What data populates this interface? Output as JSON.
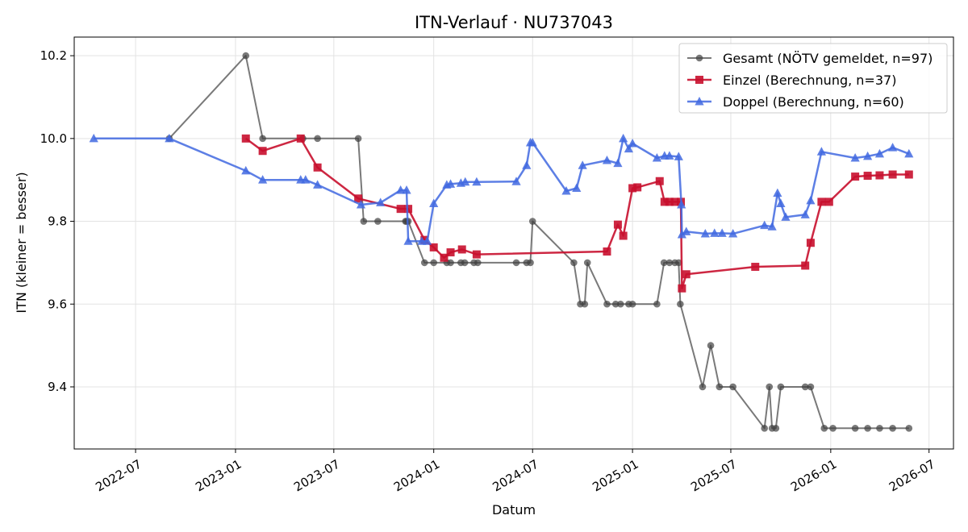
{
  "chart_data": {
    "type": "line",
    "title": "ITN-Verlauf · NU737043",
    "xlabel": "Datum",
    "ylabel": "ITN  (kleiner = besser)",
    "xlim": [
      "2022-03-10",
      "2026-08-15"
    ],
    "ylim": [
      9.25,
      10.245
    ],
    "x_ticks": [
      "2022-07",
      "2023-01",
      "2023-07",
      "2024-01",
      "2024-07",
      "2025-01",
      "2025-07",
      "2026-01",
      "2026-07"
    ],
    "y_ticks": [
      9.4,
      9.6,
      9.8,
      10.0,
      10.2
    ],
    "grid": true,
    "legend_position": "top-right",
    "series": [
      {
        "name": "Gesamt (NÖTV gemeldet, n=97)",
        "color": "#404040",
        "marker": "circle",
        "points": [
          [
            "2022-09-01",
            10.0
          ],
          [
            "2023-01-20",
            10.2
          ],
          [
            "2023-02-20",
            10.0
          ],
          [
            "2023-05-05",
            10.0
          ],
          [
            "2023-06-01",
            10.0
          ],
          [
            "2023-08-15",
            10.0
          ],
          [
            "2023-08-25",
            9.8
          ],
          [
            "2023-09-20",
            9.8
          ],
          [
            "2023-11-10",
            9.8
          ],
          [
            "2023-11-12",
            9.8
          ],
          [
            "2023-11-15",
            9.8
          ],
          [
            "2023-12-15",
            9.7
          ],
          [
            "2024-01-01",
            9.7
          ],
          [
            "2024-01-25",
            9.7
          ],
          [
            "2024-02-01",
            9.7
          ],
          [
            "2024-02-20",
            9.7
          ],
          [
            "2024-02-27",
            9.7
          ],
          [
            "2024-03-15",
            9.7
          ],
          [
            "2024-03-22",
            9.7
          ],
          [
            "2024-06-01",
            9.7
          ],
          [
            "2024-06-20",
            9.7
          ],
          [
            "2024-06-27",
            9.7
          ],
          [
            "2024-07-01",
            9.8
          ],
          [
            "2024-09-15",
            9.7
          ],
          [
            "2024-09-27",
            9.6
          ],
          [
            "2024-10-05",
            9.6
          ],
          [
            "2024-10-10",
            9.7
          ],
          [
            "2024-11-15",
            9.6
          ],
          [
            "2024-12-01",
            9.6
          ],
          [
            "2024-12-10",
            9.6
          ],
          [
            "2024-12-25",
            9.6
          ],
          [
            "2025-01-01",
            9.6
          ],
          [
            "2025-02-15",
            9.6
          ],
          [
            "2025-02-28",
            9.7
          ],
          [
            "2025-03-10",
            9.7
          ],
          [
            "2025-03-20",
            9.7
          ],
          [
            "2025-03-27",
            9.7
          ],
          [
            "2025-03-30",
            9.6
          ],
          [
            "2025-05-10",
            9.4
          ],
          [
            "2025-05-25",
            9.5
          ],
          [
            "2025-06-10",
            9.4
          ],
          [
            "2025-07-05",
            9.4
          ],
          [
            "2025-09-01",
            9.3
          ],
          [
            "2025-09-10",
            9.4
          ],
          [
            "2025-09-15",
            9.3
          ],
          [
            "2025-09-22",
            9.3
          ],
          [
            "2025-10-01",
            9.4
          ],
          [
            "2025-11-15",
            9.4
          ],
          [
            "2025-11-25",
            9.4
          ],
          [
            "2025-12-20",
            9.3
          ],
          [
            "2026-01-05",
            9.3
          ],
          [
            "2026-02-15",
            9.3
          ],
          [
            "2026-03-10",
            9.3
          ],
          [
            "2026-04-01",
            9.3
          ],
          [
            "2026-04-25",
            9.3
          ],
          [
            "2026-05-25",
            9.3
          ]
        ]
      },
      {
        "name": "Einzel (Berechnung, n=37)",
        "color": "#c8102e",
        "marker": "square",
        "points": [
          [
            "2023-01-20",
            10.0
          ],
          [
            "2023-02-20",
            9.97
          ],
          [
            "2023-05-01",
            10.0
          ],
          [
            "2023-06-01",
            9.93
          ],
          [
            "2023-08-15",
            9.855
          ],
          [
            "2023-11-01",
            9.83
          ],
          [
            "2023-11-15",
            9.83
          ],
          [
            "2023-12-15",
            9.755
          ],
          [
            "2024-01-01",
            9.737
          ],
          [
            "2024-01-20",
            9.712
          ],
          [
            "2024-02-01",
            9.725
          ],
          [
            "2024-02-22",
            9.732
          ],
          [
            "2024-03-20",
            9.72
          ],
          [
            "2024-11-15",
            9.727
          ],
          [
            "2024-12-05",
            9.792
          ],
          [
            "2024-12-15",
            9.765
          ],
          [
            "2025-01-01",
            9.88
          ],
          [
            "2025-01-10",
            9.882
          ],
          [
            "2025-02-20",
            9.897
          ],
          [
            "2025-03-01",
            9.847
          ],
          [
            "2025-03-10",
            9.847
          ],
          [
            "2025-03-20",
            9.847
          ],
          [
            "2025-03-31",
            9.847
          ],
          [
            "2025-04-02",
            9.638
          ],
          [
            "2025-04-10",
            9.672
          ],
          [
            "2025-08-15",
            9.69
          ],
          [
            "2025-11-15",
            9.693
          ],
          [
            "2025-11-25",
            9.748
          ],
          [
            "2025-12-15",
            9.847
          ],
          [
            "2025-12-29",
            9.847
          ],
          [
            "2026-02-15",
            9.908
          ],
          [
            "2026-03-10",
            9.91
          ],
          [
            "2026-04-01",
            9.911
          ],
          [
            "2026-04-25",
            9.913
          ],
          [
            "2026-05-25",
            9.913
          ]
        ]
      },
      {
        "name": "Doppel (Berechnung, n=60)",
        "color": "#4169e1",
        "marker": "triangle",
        "points": [
          [
            "2022-04-15",
            10.0
          ],
          [
            "2022-09-01",
            10.0
          ],
          [
            "2023-01-20",
            9.922
          ],
          [
            "2023-02-20",
            9.9
          ],
          [
            "2023-05-01",
            9.9
          ],
          [
            "2023-05-10",
            9.9
          ],
          [
            "2023-06-01",
            9.888
          ],
          [
            "2023-08-20",
            9.84
          ],
          [
            "2023-09-25",
            9.845
          ],
          [
            "2023-11-01",
            9.875
          ],
          [
            "2023-11-12",
            9.875
          ],
          [
            "2023-11-15",
            9.752
          ],
          [
            "2023-12-10",
            9.752
          ],
          [
            "2023-12-20",
            9.752
          ],
          [
            "2024-01-01",
            9.843
          ],
          [
            "2024-01-25",
            9.888
          ],
          [
            "2024-02-01",
            9.89
          ],
          [
            "2024-02-20",
            9.892
          ],
          [
            "2024-02-28",
            9.895
          ],
          [
            "2024-03-20",
            9.895
          ],
          [
            "2024-06-01",
            9.896
          ],
          [
            "2024-06-20",
            9.935
          ],
          [
            "2024-06-27",
            9.99
          ],
          [
            "2024-07-01",
            9.99
          ],
          [
            "2024-09-01",
            9.873
          ],
          [
            "2024-09-20",
            9.88
          ],
          [
            "2024-10-01",
            9.935
          ],
          [
            "2024-11-15",
            9.947
          ],
          [
            "2024-12-05",
            9.94
          ],
          [
            "2024-12-15",
            10.0
          ],
          [
            "2024-12-25",
            9.975
          ],
          [
            "2025-01-01",
            9.988
          ],
          [
            "2025-02-15",
            9.953
          ],
          [
            "2025-03-01",
            9.958
          ],
          [
            "2025-03-10",
            9.958
          ],
          [
            "2025-03-27",
            9.956
          ],
          [
            "2025-04-01",
            9.84
          ],
          [
            "2025-04-02",
            9.768
          ],
          [
            "2025-04-10",
            9.775
          ],
          [
            "2025-05-15",
            9.77
          ],
          [
            "2025-06-01",
            9.771
          ],
          [
            "2025-06-15",
            9.771
          ],
          [
            "2025-07-05",
            9.77
          ],
          [
            "2025-09-01",
            9.79
          ],
          [
            "2025-09-15",
            9.787
          ],
          [
            "2025-09-25",
            9.868
          ],
          [
            "2025-10-01",
            9.843
          ],
          [
            "2025-10-10",
            9.81
          ],
          [
            "2025-11-15",
            9.816
          ],
          [
            "2025-11-25",
            9.85
          ],
          [
            "2025-12-15",
            9.968
          ],
          [
            "2026-02-15",
            9.953
          ],
          [
            "2026-03-10",
            9.957
          ],
          [
            "2026-04-01",
            9.963
          ],
          [
            "2026-04-25",
            9.978
          ],
          [
            "2026-05-25",
            9.963
          ]
        ]
      }
    ]
  }
}
